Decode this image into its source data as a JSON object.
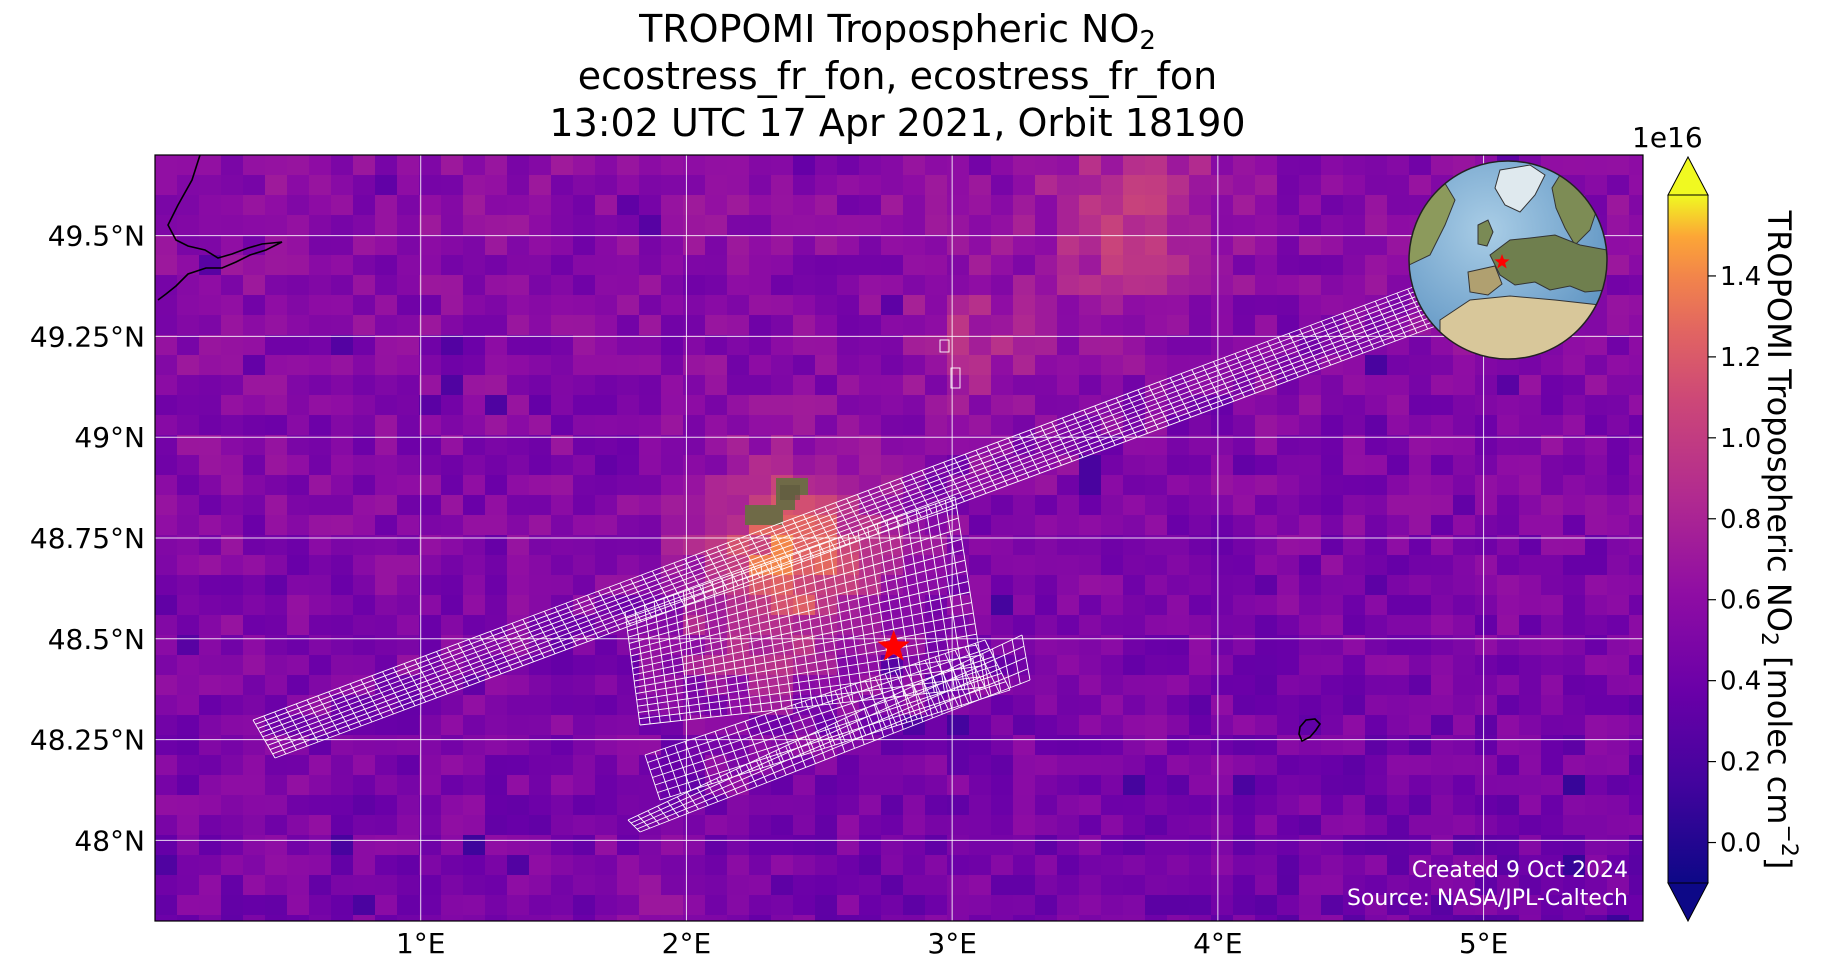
{
  "title": {
    "line1_text": "TROPOMI Tropospheric NO",
    "line1_sub": "2",
    "line2": "ecostress_fr_fon, ecostress_fr_fon",
    "line3": "13:02 UTC 17 Apr 2021, Orbit 18190"
  },
  "map": {
    "lon_range": [
      0.0,
      5.6
    ],
    "lat_range": [
      47.8,
      49.7
    ],
    "lat_ticks": [
      {
        "value": 49.5,
        "label": "49.5°N"
      },
      {
        "value": 49.25,
        "label": "49.25°N"
      },
      {
        "value": 49.0,
        "label": "49°N"
      },
      {
        "value": 48.75,
        "label": "48.75°N"
      },
      {
        "value": 48.5,
        "label": "48.5°N"
      },
      {
        "value": 48.25,
        "label": "48.25°N"
      },
      {
        "value": 48.0,
        "label": "48°N"
      }
    ],
    "lon_ticks": [
      {
        "value": 1.0,
        "label": "1°E"
      },
      {
        "value": 2.0,
        "label": "2°E"
      },
      {
        "value": 3.0,
        "label": "3°E"
      },
      {
        "value": 4.0,
        "label": "4°E"
      },
      {
        "value": 5.0,
        "label": "5°E"
      }
    ],
    "target_marker": {
      "lon": 2.78,
      "lat": 48.48,
      "color": "#ff0000"
    },
    "gridline_color": "#ffffff",
    "swath_color": "#ffffff",
    "coastline_color": "#000000"
  },
  "colorbar": {
    "label_text": "TROPOMI Tropospheric NO",
    "label_sub": "2",
    "label_units": " [molec cm",
    "label_sup": "−2",
    "label_close": "]",
    "scale_exponent": "1e16",
    "range": [
      -0.1,
      1.6
    ],
    "ticks": [
      {
        "value": 0.0,
        "label": "0.0"
      },
      {
        "value": 0.2,
        "label": "0.2"
      },
      {
        "value": 0.4,
        "label": "0.4"
      },
      {
        "value": 0.6,
        "label": "0.6"
      },
      {
        "value": 0.8,
        "label": "0.8"
      },
      {
        "value": 1.0,
        "label": "1.0"
      },
      {
        "value": 1.2,
        "label": "1.2"
      },
      {
        "value": 1.4,
        "label": "1.4"
      }
    ],
    "colormap": "plasma",
    "extend": "both"
  },
  "inset_globe": {
    "marker_color": "#ff0000"
  },
  "footnote": {
    "created": "Created 9 Oct 2024",
    "source": "Source: NASA/JPL-Caltech"
  }
}
